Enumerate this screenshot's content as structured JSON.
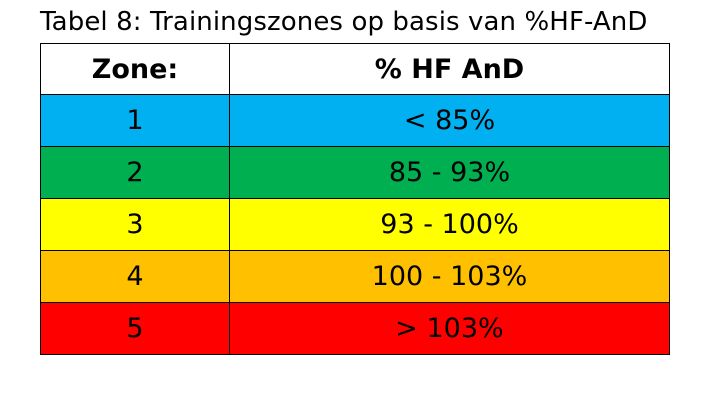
{
  "caption": "Tabel 8: Trainingszones op basis van %HF-AnD",
  "table": {
    "headers": [
      "Zone:",
      "% HF AnD"
    ],
    "rows": [
      {
        "zone": "1",
        "range": "< 85%",
        "color": "#00b0f0"
      },
      {
        "zone": "2",
        "range": "85 - 93%",
        "color": "#00b050"
      },
      {
        "zone": "3",
        "range": "93 - 100%",
        "color": "#ffff00"
      },
      {
        "zone": "4",
        "range": "100 - 103%",
        "color": "#ffc000"
      },
      {
        "zone": "5",
        "range": "> 103%",
        "color": "#ff0000"
      }
    ]
  }
}
